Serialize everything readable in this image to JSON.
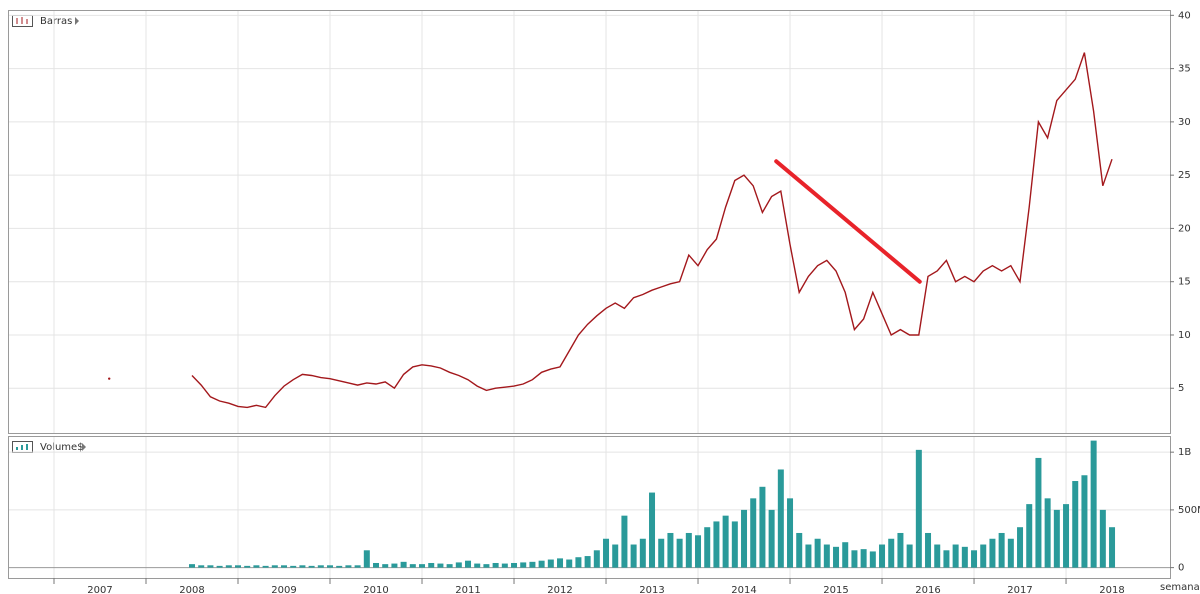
{
  "chart_data": [
    {
      "type": "line",
      "panel_label": "Barras",
      "color": "#a3181c",
      "x": [
        2007.6,
        2008.0,
        2008.5,
        2008.6,
        2008.7,
        2008.8,
        2008.9,
        2009.0,
        2009.1,
        2009.2,
        2009.3,
        2009.4,
        2009.5,
        2009.6,
        2009.7,
        2009.8,
        2009.9,
        2010.0,
        2010.1,
        2010.2,
        2010.3,
        2010.4,
        2010.5,
        2010.6,
        2010.7,
        2010.8,
        2010.9,
        2011.0,
        2011.1,
        2011.2,
        2011.3,
        2011.4,
        2011.5,
        2011.6,
        2011.7,
        2011.8,
        2011.9,
        2012.0,
        2012.1,
        2012.2,
        2012.3,
        2012.4,
        2012.5,
        2012.6,
        2012.7,
        2012.8,
        2012.9,
        2013.0,
        2013.1,
        2013.2,
        2013.3,
        2013.4,
        2013.5,
        2013.6,
        2013.7,
        2013.8,
        2013.9,
        2014.0,
        2014.1,
        2014.2,
        2014.3,
        2014.4,
        2014.5,
        2014.6,
        2014.7,
        2014.8,
        2014.9,
        2015.0,
        2015.1,
        2015.2,
        2015.3,
        2015.4,
        2015.5,
        2015.6,
        2015.7,
        2015.8,
        2015.9,
        2016.0,
        2016.1,
        2016.2,
        2016.3,
        2016.4,
        2016.5,
        2016.6,
        2016.7,
        2016.8,
        2016.9,
        2017.0,
        2017.1,
        2017.2,
        2017.3,
        2017.4,
        2017.5,
        2017.6,
        2017.7,
        2017.8,
        2017.9,
        2018.0,
        2018.1,
        2018.2,
        2018.3,
        2018.4,
        2018.5
      ],
      "values": [
        5.9,
        null,
        6.2,
        5.3,
        4.2,
        3.8,
        3.6,
        3.3,
        3.2,
        3.4,
        3.2,
        4.3,
        5.2,
        5.8,
        6.3,
        6.2,
        6.0,
        5.9,
        5.7,
        5.5,
        5.3,
        5.5,
        5.4,
        5.6,
        5.0,
        6.3,
        7.0,
        7.2,
        7.1,
        6.9,
        6.5,
        6.2,
        5.8,
        5.2,
        4.8,
        5.0,
        5.1,
        5.2,
        5.4,
        5.8,
        6.5,
        6.8,
        7.0,
        8.5,
        10.0,
        11.0,
        11.8,
        12.5,
        13.0,
        12.5,
        13.5,
        13.8,
        14.2,
        14.5,
        14.8,
        15.0,
        17.5,
        16.5,
        18.0,
        19.0,
        22.0,
        24.5,
        25.0,
        24.0,
        21.5,
        23.0,
        23.5,
        18.5,
        14.0,
        15.5,
        16.5,
        17.0,
        16.0,
        14.0,
        10.5,
        11.5,
        14.0,
        12.0,
        10.0,
        10.5,
        10.0,
        10.0,
        15.5,
        16.0,
        17.0,
        15.0,
        15.5,
        15.0,
        16.0,
        16.5,
        16.0,
        16.5,
        15.0,
        22.0,
        30.0,
        28.5,
        32.0,
        33.0,
        34.0,
        36.5,
        31.0,
        24.0,
        26.5
      ],
      "trendline": {
        "x": [
          2014.85,
          2016.41
        ],
        "values": [
          26.3,
          15.0
        ],
        "color": "#e8232a"
      },
      "xlim": [
        2006.5,
        2019.13
      ],
      "ylim": [
        0.8,
        40.5
      ],
      "yticks": [
        5,
        10,
        15,
        20,
        25,
        30,
        35,
        40
      ],
      "grid": true
    },
    {
      "type": "bar",
      "panel_label": "Volume$",
      "color": "#2a9a9a",
      "x_label": "semana -",
      "x": [
        2008.5,
        2008.6,
        2008.7,
        2008.8,
        2008.9,
        2009.0,
        2009.1,
        2009.2,
        2009.3,
        2009.4,
        2009.5,
        2009.6,
        2009.7,
        2009.8,
        2009.9,
        2010.0,
        2010.1,
        2010.2,
        2010.3,
        2010.4,
        2010.5,
        2010.6,
        2010.7,
        2010.8,
        2010.9,
        2011.0,
        2011.1,
        2011.2,
        2011.3,
        2011.4,
        2011.5,
        2011.6,
        2011.7,
        2011.8,
        2011.9,
        2012.0,
        2012.1,
        2012.2,
        2012.3,
        2012.4,
        2012.5,
        2012.6,
        2012.7,
        2012.8,
        2012.9,
        2013.0,
        2013.1,
        2013.2,
        2013.3,
        2013.4,
        2013.5,
        2013.6,
        2013.7,
        2013.8,
        2013.9,
        2014.0,
        2014.1,
        2014.2,
        2014.3,
        2014.4,
        2014.5,
        2014.6,
        2014.7,
        2014.8,
        2014.9,
        2015.0,
        2015.1,
        2015.2,
        2015.3,
        2015.4,
        2015.5,
        2015.6,
        2015.7,
        2015.8,
        2015.9,
        2016.0,
        2016.1,
        2016.2,
        2016.3,
        2016.4,
        2016.5,
        2016.6,
        2016.7,
        2016.8,
        2016.9,
        2017.0,
        2017.1,
        2017.2,
        2017.3,
        2017.4,
        2017.5,
        2017.6,
        2017.7,
        2017.8,
        2017.9,
        2018.0,
        2018.1,
        2018.2,
        2018.3,
        2018.4,
        2018.5
      ],
      "values": [
        30000000,
        20000000,
        20000000,
        15000000,
        20000000,
        20000000,
        15000000,
        20000000,
        15000000,
        20000000,
        20000000,
        15000000,
        20000000,
        15000000,
        20000000,
        20000000,
        15000000,
        20000000,
        20000000,
        150000000,
        40000000,
        30000000,
        35000000,
        50000000,
        30000000,
        30000000,
        40000000,
        35000000,
        30000000,
        45000000,
        60000000,
        35000000,
        30000000,
        40000000,
        35000000,
        40000000,
        45000000,
        50000000,
        60000000,
        70000000,
        80000000,
        70000000,
        90000000,
        100000000,
        150000000,
        250000000,
        200000000,
        450000000,
        200000000,
        250000000,
        650000000,
        250000000,
        300000000,
        250000000,
        300000000,
        280000000,
        350000000,
        400000000,
        450000000,
        400000000,
        500000000,
        600000000,
        700000000,
        500000000,
        850000000,
        600000000,
        300000000,
        200000000,
        250000000,
        200000000,
        180000000,
        220000000,
        150000000,
        160000000,
        140000000,
        200000000,
        250000000,
        300000000,
        200000000,
        1020000000,
        300000000,
        200000000,
        150000000,
        200000000,
        180000000,
        150000000,
        200000000,
        250000000,
        300000000,
        250000000,
        350000000,
        550000000,
        950000000,
        600000000,
        500000000,
        550000000,
        750000000,
        800000000,
        1100000000,
        500000000,
        350000000
      ],
      "xlim": [
        2006.5,
        2019.13
      ],
      "xticks": [
        2007,
        2008,
        2009,
        2010,
        2011,
        2012,
        2013,
        2014,
        2015,
        2016,
        2017,
        2018
      ],
      "ylim": [
        -90000000,
        1140000000
      ],
      "yticks": [
        0,
        {
          "value": 500000000,
          "label": "500M"
        },
        {
          "value": 1000000000,
          "label": "1B"
        }
      ],
      "grid": true
    }
  ]
}
